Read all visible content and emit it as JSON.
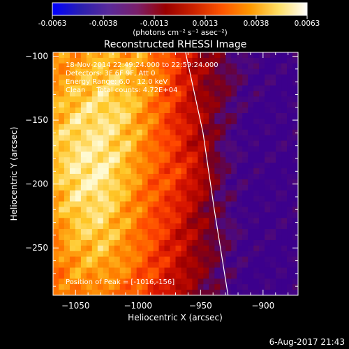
{
  "colorbar": {
    "ticks": [
      "-0.0063",
      "-0.0038",
      "-0.0013",
      "0.0013",
      "0.0038",
      "0.0063"
    ],
    "unit_label": "(photons cm⁻² s⁻¹ asec⁻²)",
    "range": [
      -0.0063,
      0.0063
    ],
    "colors": [
      "#0000ff",
      "#2a1fb0",
      "#5a2a9a",
      "#7a1f6a",
      "#990000",
      "#cc2200",
      "#ff5500",
      "#ff9900",
      "#ffe066",
      "#ffffff"
    ]
  },
  "chart_data": {
    "type": "heatmap",
    "title": "Reconstructed RHESSI Image",
    "xlabel": "Heliocentric X (arcsec)",
    "ylabel": "Heliocentric Y (arcsec)",
    "xlim": [
      -1068,
      -872
    ],
    "ylim": [
      -287,
      -97
    ],
    "x_ticks": [
      -1050,
      -1000,
      -950,
      -900
    ],
    "y_ticks": [
      -100,
      -150,
      -200,
      -250
    ],
    "x_tick_labels": [
      "−1050",
      "−1000",
      "−950",
      "−900"
    ],
    "y_tick_labels": [
      "−100",
      "−150",
      "−200",
      "−250"
    ],
    "annotations": [
      "18-Nov-2014 22:49:24.000 to 22:59:24.000",
      "Detectors: 3F 6F 9F, Att 0",
      "Energy Range: 6.0 - 12.0 keV",
      "Clean     Total counts: 4.72E+04"
    ],
    "peak_text": "Position of Peak = [-1016,-156]",
    "limb": [
      [
        -962,
        -97
      ],
      [
        -948,
        -160
      ],
      [
        -939,
        -220
      ],
      [
        -928,
        -287
      ]
    ],
    "image_levels": [
      [
        0.7,
        0.75,
        0.8,
        0.78,
        0.72,
        0.55,
        0.35,
        0.15,
        0.05,
        0.0,
        0.0
      ],
      [
        0.75,
        0.82,
        0.88,
        0.85,
        0.75,
        0.55,
        0.3,
        0.2,
        0.05,
        0.0,
        0.0
      ],
      [
        0.8,
        0.9,
        0.92,
        0.88,
        0.7,
        0.5,
        0.35,
        0.15,
        0.0,
        0.0,
        0.0
      ],
      [
        0.85,
        0.92,
        0.95,
        0.85,
        0.68,
        0.52,
        0.35,
        0.1,
        0.0,
        0.0,
        0.0
      ],
      [
        0.82,
        0.95,
        0.98,
        0.82,
        0.65,
        0.55,
        0.4,
        0.12,
        0.0,
        0.0,
        0.0
      ],
      [
        0.78,
        0.9,
        0.92,
        0.78,
        0.62,
        0.5,
        0.3,
        0.1,
        0.0,
        0.0,
        0.0
      ],
      [
        0.7,
        0.85,
        0.88,
        0.75,
        0.6,
        0.45,
        0.28,
        0.15,
        0.0,
        0.0,
        0.0
      ],
      [
        0.68,
        0.78,
        0.8,
        0.72,
        0.58,
        0.42,
        0.28,
        0.1,
        0.0,
        0.0,
        0.0
      ],
      [
        0.65,
        0.72,
        0.7,
        0.65,
        0.52,
        0.38,
        0.22,
        0.08,
        0.0,
        0.0,
        0.0
      ]
    ]
  },
  "footer": {
    "date": "6-Aug-2017 21:43"
  }
}
